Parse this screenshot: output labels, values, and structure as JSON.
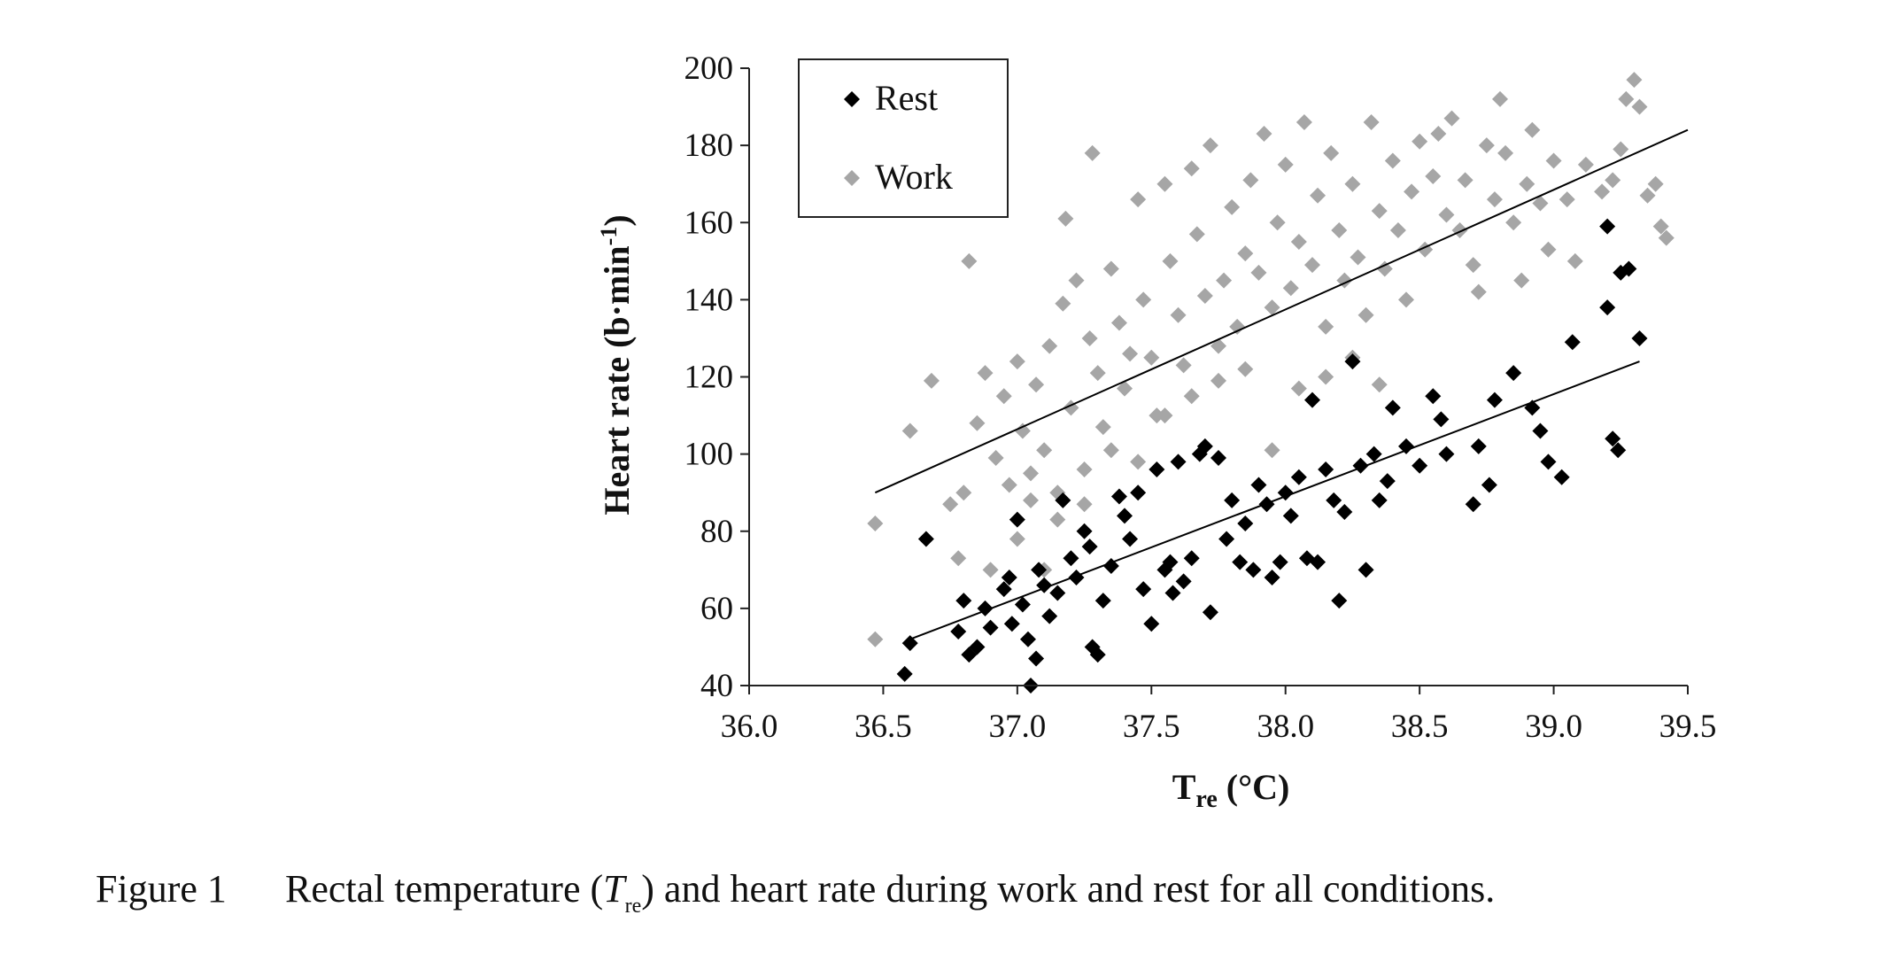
{
  "chart_data": {
    "type": "scatter",
    "title": "",
    "xlabel_main": "T",
    "xlabel_sub": "re",
    "xlabel_unit": " (°C)",
    "ylabel_main": "Heart rate (b·min",
    "ylabel_sup": "-1",
    "ylabel_close": ")",
    "xlim": [
      36.0,
      39.5
    ],
    "ylim": [
      40,
      200
    ],
    "x_ticks": [
      "36.0",
      "36.5",
      "37.0",
      "37.5",
      "38.0",
      "38.5",
      "39.0",
      "39.5"
    ],
    "y_ticks": [
      "40",
      "60",
      "80",
      "100",
      "120",
      "140",
      "160",
      "180",
      "200"
    ],
    "grid": false,
    "legend_position": "top-left",
    "series": [
      {
        "name": "Rest",
        "color": "#000000",
        "marker": "diamond",
        "points": [
          [
            36.58,
            43
          ],
          [
            36.6,
            51
          ],
          [
            36.66,
            78
          ],
          [
            36.78,
            54
          ],
          [
            36.8,
            62
          ],
          [
            36.82,
            48
          ],
          [
            36.85,
            50
          ],
          [
            36.88,
            60
          ],
          [
            36.9,
            55
          ],
          [
            36.95,
            65
          ],
          [
            36.97,
            68
          ],
          [
            36.98,
            56
          ],
          [
            37.0,
            83
          ],
          [
            37.02,
            61
          ],
          [
            37.04,
            52
          ],
          [
            37.05,
            40
          ],
          [
            37.07,
            47
          ],
          [
            37.08,
            70
          ],
          [
            37.1,
            66
          ],
          [
            37.12,
            58
          ],
          [
            37.15,
            64
          ],
          [
            37.17,
            88
          ],
          [
            37.2,
            73
          ],
          [
            37.22,
            68
          ],
          [
            37.25,
            80
          ],
          [
            37.27,
            76
          ],
          [
            37.28,
            50
          ],
          [
            37.3,
            48
          ],
          [
            37.32,
            62
          ],
          [
            37.35,
            71
          ],
          [
            37.38,
            89
          ],
          [
            37.4,
            84
          ],
          [
            37.42,
            78
          ],
          [
            37.45,
            90
          ],
          [
            37.47,
            65
          ],
          [
            37.5,
            56
          ],
          [
            37.52,
            96
          ],
          [
            37.55,
            70
          ],
          [
            37.57,
            72
          ],
          [
            37.58,
            64
          ],
          [
            37.6,
            98
          ],
          [
            37.62,
            67
          ],
          [
            37.65,
            73
          ],
          [
            37.68,
            100
          ],
          [
            37.7,
            102
          ],
          [
            37.72,
            59
          ],
          [
            37.75,
            99
          ],
          [
            37.78,
            78
          ],
          [
            37.8,
            88
          ],
          [
            37.83,
            72
          ],
          [
            37.85,
            82
          ],
          [
            37.88,
            70
          ],
          [
            37.9,
            92
          ],
          [
            37.93,
            87
          ],
          [
            37.95,
            68
          ],
          [
            37.98,
            72
          ],
          [
            38.0,
            90
          ],
          [
            38.02,
            84
          ],
          [
            38.05,
            94
          ],
          [
            38.08,
            73
          ],
          [
            38.1,
            114
          ],
          [
            38.12,
            72
          ],
          [
            38.15,
            96
          ],
          [
            38.18,
            88
          ],
          [
            38.2,
            62
          ],
          [
            38.22,
            85
          ],
          [
            38.25,
            124
          ],
          [
            38.28,
            97
          ],
          [
            38.3,
            70
          ],
          [
            38.33,
            100
          ],
          [
            38.35,
            88
          ],
          [
            38.38,
            93
          ],
          [
            38.4,
            112
          ],
          [
            38.45,
            102
          ],
          [
            38.5,
            97
          ],
          [
            38.55,
            115
          ],
          [
            38.58,
            109
          ],
          [
            38.6,
            100
          ],
          [
            38.7,
            87
          ],
          [
            38.72,
            102
          ],
          [
            38.76,
            92
          ],
          [
            38.78,
            114
          ],
          [
            38.85,
            121
          ],
          [
            38.92,
            112
          ],
          [
            38.95,
            106
          ],
          [
            38.98,
            98
          ],
          [
            39.03,
            94
          ],
          [
            39.07,
            129
          ],
          [
            39.2,
            159
          ],
          [
            39.22,
            104
          ],
          [
            39.24,
            101
          ],
          [
            39.25,
            147
          ],
          [
            39.28,
            148
          ],
          [
            39.32,
            130
          ],
          [
            39.2,
            138
          ]
        ]
      },
      {
        "name": "Work",
        "color": "#a6a6a6",
        "marker": "diamond",
        "points": [
          [
            36.47,
            82
          ],
          [
            36.47,
            52
          ],
          [
            36.6,
            106
          ],
          [
            36.68,
            119
          ],
          [
            36.75,
            87
          ],
          [
            36.78,
            73
          ],
          [
            36.8,
            90
          ],
          [
            36.82,
            150
          ],
          [
            36.85,
            108
          ],
          [
            36.88,
            121
          ],
          [
            36.9,
            70
          ],
          [
            36.92,
            99
          ],
          [
            36.95,
            115
          ],
          [
            36.97,
            92
          ],
          [
            37.0,
            124
          ],
          [
            37.02,
            106
          ],
          [
            37.05,
            88
          ],
          [
            37.07,
            118
          ],
          [
            37.1,
            101
          ],
          [
            37.12,
            128
          ],
          [
            37.15,
            83
          ],
          [
            37.17,
            139
          ],
          [
            37.18,
            161
          ],
          [
            37.2,
            112
          ],
          [
            37.22,
            145
          ],
          [
            37.25,
            96
          ],
          [
            37.27,
            130
          ],
          [
            37.28,
            178
          ],
          [
            37.3,
            121
          ],
          [
            37.32,
            107
          ],
          [
            37.35,
            148
          ],
          [
            37.38,
            134
          ],
          [
            37.4,
            117
          ],
          [
            37.42,
            126
          ],
          [
            37.45,
            166
          ],
          [
            37.47,
            140
          ],
          [
            37.5,
            125
          ],
          [
            37.52,
            110
          ],
          [
            37.55,
            170
          ],
          [
            37.57,
            150
          ],
          [
            37.6,
            136
          ],
          [
            37.62,
            123
          ],
          [
            37.65,
            174
          ],
          [
            37.67,
            157
          ],
          [
            37.7,
            141
          ],
          [
            37.72,
            180
          ],
          [
            37.75,
            128
          ],
          [
            37.77,
            145
          ],
          [
            37.8,
            164
          ],
          [
            37.82,
            133
          ],
          [
            37.85,
            152
          ],
          [
            37.87,
            171
          ],
          [
            37.9,
            147
          ],
          [
            37.92,
            183
          ],
          [
            37.95,
            138
          ],
          [
            37.97,
            160
          ],
          [
            38.0,
            175
          ],
          [
            38.02,
            143
          ],
          [
            38.05,
            155
          ],
          [
            38.07,
            186
          ],
          [
            38.1,
            149
          ],
          [
            38.12,
            167
          ],
          [
            38.15,
            133
          ],
          [
            38.17,
            178
          ],
          [
            38.2,
            158
          ],
          [
            38.22,
            145
          ],
          [
            38.25,
            170
          ],
          [
            38.27,
            151
          ],
          [
            38.3,
            136
          ],
          [
            38.32,
            186
          ],
          [
            38.35,
            163
          ],
          [
            38.37,
            148
          ],
          [
            38.4,
            176
          ],
          [
            38.42,
            158
          ],
          [
            38.45,
            140
          ],
          [
            38.47,
            168
          ],
          [
            38.5,
            181
          ],
          [
            38.52,
            153
          ],
          [
            38.55,
            172
          ],
          [
            38.57,
            183
          ],
          [
            38.6,
            162
          ],
          [
            38.62,
            187
          ],
          [
            38.65,
            158
          ],
          [
            38.67,
            171
          ],
          [
            38.7,
            149
          ],
          [
            38.72,
            142
          ],
          [
            38.75,
            180
          ],
          [
            38.78,
            166
          ],
          [
            38.8,
            192
          ],
          [
            38.82,
            178
          ],
          [
            38.85,
            160
          ],
          [
            38.88,
            145
          ],
          [
            38.9,
            170
          ],
          [
            38.92,
            184
          ],
          [
            38.95,
            165
          ],
          [
            38.98,
            153
          ],
          [
            39.0,
            176
          ],
          [
            39.05,
            166
          ],
          [
            39.08,
            150
          ],
          [
            39.12,
            175
          ],
          [
            39.18,
            168
          ],
          [
            39.22,
            171
          ],
          [
            39.25,
            179
          ],
          [
            39.27,
            192
          ],
          [
            39.3,
            197
          ],
          [
            39.32,
            190
          ],
          [
            39.35,
            167
          ],
          [
            39.38,
            170
          ],
          [
            39.4,
            159
          ],
          [
            39.42,
            156
          ],
          [
            37.0,
            78
          ],
          [
            37.1,
            70
          ],
          [
            37.05,
            95
          ],
          [
            37.15,
            90
          ],
          [
            37.25,
            87
          ],
          [
            37.35,
            101
          ],
          [
            37.45,
            98
          ],
          [
            37.55,
            110
          ],
          [
            37.65,
            115
          ],
          [
            37.75,
            119
          ],
          [
            37.85,
            122
          ],
          [
            37.95,
            101
          ],
          [
            38.05,
            117
          ],
          [
            38.15,
            120
          ],
          [
            38.25,
            125
          ],
          [
            38.35,
            118
          ]
        ]
      }
    ],
    "trendlines": [
      {
        "series": "Rest",
        "x": [
          36.6,
          39.32
        ],
        "y": [
          52,
          124
        ]
      },
      {
        "series": "Work",
        "x": [
          36.47,
          39.5
        ],
        "y": [
          90,
          184
        ]
      }
    ]
  },
  "caption": {
    "figure_label": "Figure 1",
    "text_before": "Rectal temperature (",
    "symbol": "T",
    "symbol_sub": "re",
    "text_after": ") and heart rate during work and rest for all conditions."
  }
}
